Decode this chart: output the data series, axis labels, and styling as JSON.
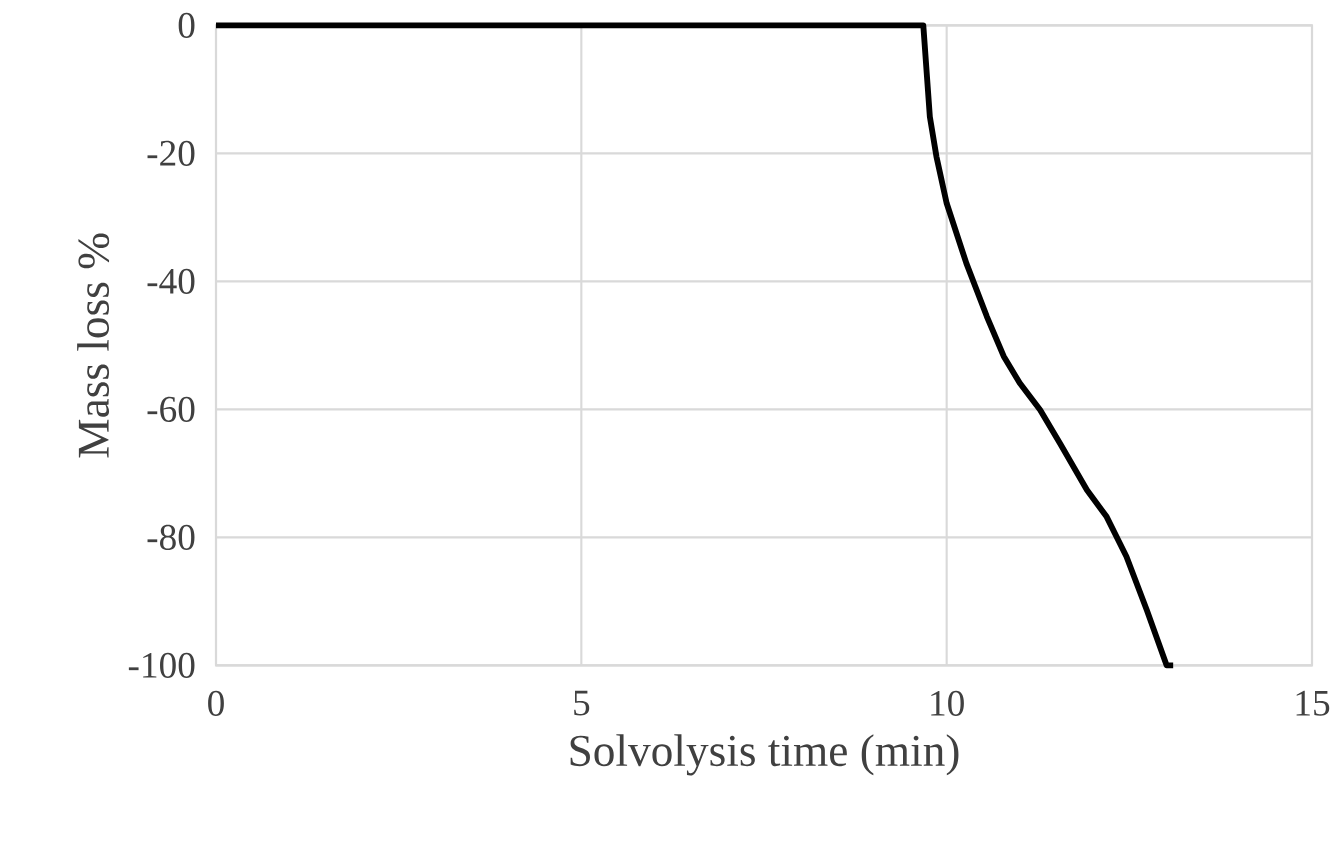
{
  "chart_data": {
    "type": "line",
    "xlabel": "Solvolysis time (min)",
    "ylabel": "Mass loss %",
    "series": [
      {
        "color": "#000000",
        "x": [
          0,
          9.68,
          9.77,
          9.86,
          10.0,
          10.27,
          10.55,
          10.78,
          11.0,
          11.28,
          11.55,
          11.92,
          12.19,
          12.46,
          12.74,
          13.01,
          13.1
        ],
        "values": [
          0,
          0,
          -14.3,
          -20.5,
          -27.8,
          -37.2,
          -45.5,
          -51.7,
          -55.9,
          -60.1,
          -65.3,
          -72.6,
          -76.8,
          -83.0,
          -91.4,
          -100,
          -100
        ]
      }
    ],
    "xlim": [
      0,
      15
    ],
    "ylim": [
      -100,
      0
    ],
    "xticks": [
      0,
      5,
      10,
      15
    ],
    "yticks": [
      -100,
      -80,
      -60,
      -40,
      -20,
      0
    ],
    "grid": true,
    "marker": "none",
    "line_style": "solid"
  }
}
